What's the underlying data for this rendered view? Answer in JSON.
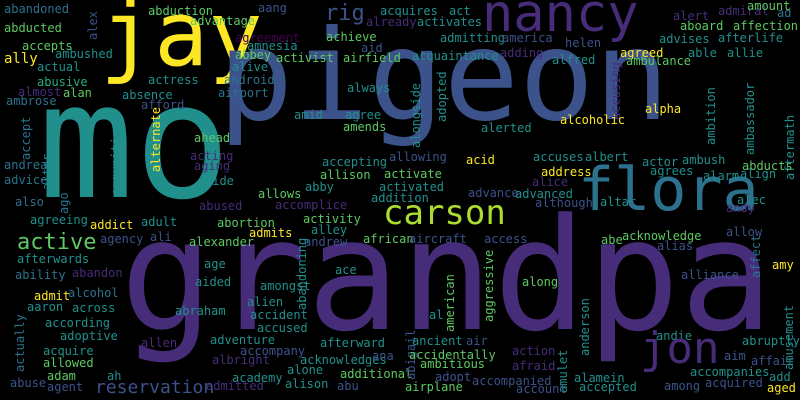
{
  "cloud": {
    "background": "#000000",
    "palette": {
      "purple": "#472c7a",
      "blue": "#3b528b",
      "teal": "#2c728e",
      "green": "#21908d",
      "mint": "#27ad81",
      "lime": "#5ec962",
      "yellow": "#fde725",
      "ygreen": "#addc30",
      "dark": "#440154"
    },
    "words": [
      {
        "id": "w001",
        "text": "abandoned",
        "color": "teal"
      },
      {
        "id": "w002",
        "text": "abducted",
        "color": "lime"
      },
      {
        "id": "w003",
        "text": "accepts",
        "color": "lime"
      },
      {
        "id": "w004",
        "text": "ally",
        "color": "yellow"
      },
      {
        "id": "w005",
        "text": "ambushed",
        "color": "green"
      },
      {
        "id": "w006",
        "text": "actual",
        "color": "green"
      },
      {
        "id": "w007",
        "text": "abusive",
        "color": "mint"
      },
      {
        "id": "w008",
        "text": "almost",
        "color": "purple"
      },
      {
        "id": "w009",
        "text": "alan",
        "color": "lime"
      },
      {
        "id": "w010",
        "text": "ambrose",
        "color": "teal"
      },
      {
        "id": "w011",
        "text": "accept",
        "color": "teal"
      },
      {
        "id": "w012",
        "text": "andrea",
        "color": "teal"
      },
      {
        "id": "w013",
        "text": "advice",
        "color": "teal"
      },
      {
        "id": "w014",
        "text": "alter",
        "color": "teal"
      },
      {
        "id": "w015",
        "text": "also",
        "color": "teal"
      },
      {
        "id": "w016",
        "text": "ago",
        "color": "teal"
      },
      {
        "id": "w017",
        "text": "agreeing",
        "color": "green"
      },
      {
        "id": "w018",
        "text": "active",
        "color": "lime"
      },
      {
        "id": "w019",
        "text": "afterwards",
        "color": "green"
      },
      {
        "id": "w020",
        "text": "ability",
        "color": "teal"
      },
      {
        "id": "w021",
        "text": "abandon",
        "color": "purple"
      },
      {
        "id": "w022",
        "text": "alcohol",
        "color": "teal"
      },
      {
        "id": "w023",
        "text": "admit",
        "color": "yellow"
      },
      {
        "id": "w024",
        "text": "aaron",
        "color": "green"
      },
      {
        "id": "w025",
        "text": "across",
        "color": "green"
      },
      {
        "id": "w026",
        "text": "according",
        "color": "green"
      },
      {
        "id": "w027",
        "text": "adoptive",
        "color": "green"
      },
      {
        "id": "w028",
        "text": "actually",
        "color": "teal"
      },
      {
        "id": "w029",
        "text": "acquire",
        "color": "green"
      },
      {
        "id": "w030",
        "text": "allowed",
        "color": "lime"
      },
      {
        "id": "w031",
        "text": "adam",
        "color": "lime"
      },
      {
        "id": "w032",
        "text": "ah",
        "color": "green"
      },
      {
        "id": "w033",
        "text": "abuse",
        "color": "blue"
      },
      {
        "id": "w034",
        "text": "agent",
        "color": "blue"
      },
      {
        "id": "w035",
        "text": "alex",
        "color": "blue"
      },
      {
        "id": "w036",
        "text": "jay",
        "color": "yellow"
      },
      {
        "id": "w037",
        "text": "mo",
        "color": "green"
      },
      {
        "id": "w038",
        "text": "pigeon",
        "color": "blue"
      },
      {
        "id": "w039",
        "text": "grandpa",
        "color": "purple"
      },
      {
        "id": "w040",
        "text": "abduction",
        "color": "lime"
      },
      {
        "id": "w041",
        "text": "advantage",
        "color": "lime"
      },
      {
        "id": "w042",
        "text": "agreement",
        "color": "dark"
      },
      {
        "id": "w043",
        "text": "amnesia",
        "color": "green"
      },
      {
        "id": "w044",
        "text": "abbey",
        "color": "lime"
      },
      {
        "id": "w045",
        "text": "alive",
        "color": "green"
      },
      {
        "id": "w046",
        "text": "actress",
        "color": "green"
      },
      {
        "id": "w047",
        "text": "absence",
        "color": "green"
      },
      {
        "id": "w048",
        "text": "afford",
        "color": "blue"
      },
      {
        "id": "w049",
        "text": "android",
        "color": "teal"
      },
      {
        "id": "w050",
        "text": "airport",
        "color": "teal"
      },
      {
        "id": "w051",
        "text": "ahead",
        "color": "lime"
      },
      {
        "id": "w052",
        "text": "acting",
        "color": "purple"
      },
      {
        "id": "w053",
        "text": "aging",
        "color": "purple"
      },
      {
        "id": "w054",
        "text": "aide",
        "color": "green"
      },
      {
        "id": "w055",
        "text": "alternate",
        "color": "yellow"
      },
      {
        "id": "w056",
        "text": "ammunition",
        "color": "green"
      },
      {
        "id": "w057",
        "text": "addict",
        "color": "yellow"
      },
      {
        "id": "w058",
        "text": "adult",
        "color": "green"
      },
      {
        "id": "w059",
        "text": "agency",
        "color": "blue"
      },
      {
        "id": "w060",
        "text": "ali",
        "color": "blue"
      },
      {
        "id": "w061",
        "text": "alexander",
        "color": "lime"
      },
      {
        "id": "w062",
        "text": "abortion",
        "color": "lime"
      },
      {
        "id": "w063",
        "text": "admits",
        "color": "yellow"
      },
      {
        "id": "w064",
        "text": "abused",
        "color": "purple"
      },
      {
        "id": "w065",
        "text": "allows",
        "color": "lime"
      },
      {
        "id": "w066",
        "text": "abby",
        "color": "green"
      },
      {
        "id": "w067",
        "text": "accomplice",
        "color": "purple"
      },
      {
        "id": "w068",
        "text": "aang",
        "color": "blue"
      },
      {
        "id": "w069",
        "text": "rig",
        "color": "blue"
      },
      {
        "id": "w070",
        "text": "achieve",
        "color": "lime"
      },
      {
        "id": "w071",
        "text": "activist",
        "color": "lime"
      },
      {
        "id": "w072",
        "text": "airfield",
        "color": "lime"
      },
      {
        "id": "w073",
        "text": "aid",
        "color": "blue"
      },
      {
        "id": "w074",
        "text": "always",
        "color": "green"
      },
      {
        "id": "w075",
        "text": "amid",
        "color": "green"
      },
      {
        "id": "w076",
        "text": "agree",
        "color": "green"
      },
      {
        "id": "w077",
        "text": "amends",
        "color": "lime"
      },
      {
        "id": "w078",
        "text": "accepting",
        "color": "green"
      },
      {
        "id": "w079",
        "text": "allison",
        "color": "lime"
      },
      {
        "id": "w080",
        "text": "allowing",
        "color": "blue"
      },
      {
        "id": "w081",
        "text": "activate",
        "color": "lime"
      },
      {
        "id": "w082",
        "text": "activated",
        "color": "green"
      },
      {
        "id": "w083",
        "text": "addition",
        "color": "green"
      },
      {
        "id": "w084",
        "text": "alongside",
        "color": "green"
      },
      {
        "id": "w085",
        "text": "carson",
        "color": "ygreen"
      },
      {
        "id": "w086",
        "text": "activity",
        "color": "lime"
      },
      {
        "id": "w087",
        "text": "alley",
        "color": "green"
      },
      {
        "id": "w088",
        "text": "andrew",
        "color": "blue"
      },
      {
        "id": "w089",
        "text": "african",
        "color": "lime"
      },
      {
        "id": "w090",
        "text": "aircraft",
        "color": "blue"
      },
      {
        "id": "w091",
        "text": "access",
        "color": "blue"
      },
      {
        "id": "w092",
        "text": "age",
        "color": "green"
      },
      {
        "id": "w093",
        "text": "abandoning",
        "color": "green"
      },
      {
        "id": "w094",
        "text": "ace",
        "color": "green"
      },
      {
        "id": "w095",
        "text": "aided",
        "color": "green"
      },
      {
        "id": "w096",
        "text": "amongst",
        "color": "green"
      },
      {
        "id": "w097",
        "text": "abraham",
        "color": "green"
      },
      {
        "id": "w098",
        "text": "alien",
        "color": "green"
      },
      {
        "id": "w099",
        "text": "accident",
        "color": "green"
      },
      {
        "id": "w100",
        "text": "accused",
        "color": "green"
      },
      {
        "id": "w101",
        "text": "afterward",
        "color": "green"
      },
      {
        "id": "w102",
        "text": "allen",
        "color": "purple"
      },
      {
        "id": "w103",
        "text": "adventure",
        "color": "green"
      },
      {
        "id": "w104",
        "text": "albright",
        "color": "purple"
      },
      {
        "id": "w105",
        "text": "accompany",
        "color": "blue"
      },
      {
        "id": "w106",
        "text": "acknowledges",
        "color": "green"
      },
      {
        "id": "w107",
        "text": "academy",
        "color": "green"
      },
      {
        "id": "w108",
        "text": "alone",
        "color": "green"
      },
      {
        "id": "w109",
        "text": "alison",
        "color": "green"
      },
      {
        "id": "w110",
        "text": "admitted",
        "color": "purple"
      },
      {
        "id": "w111",
        "text": "abu",
        "color": "blue"
      },
      {
        "id": "w112",
        "text": "additional",
        "color": "lime"
      },
      {
        "id": "w113",
        "text": "ana",
        "color": "blue"
      },
      {
        "id": "w114",
        "text": "acquires",
        "color": "green"
      },
      {
        "id": "w115",
        "text": "already",
        "color": "purple"
      },
      {
        "id": "w116",
        "text": "act",
        "color": "green"
      },
      {
        "id": "w117",
        "text": "activates",
        "color": "green"
      },
      {
        "id": "w118",
        "text": "nancy",
        "color": "purple"
      },
      {
        "id": "w119",
        "text": "admitting",
        "color": "green"
      },
      {
        "id": "w120",
        "text": "america",
        "color": "blue"
      },
      {
        "id": "w121",
        "text": "adding",
        "color": "purple"
      },
      {
        "id": "w122",
        "text": "acquaintance",
        "color": "green"
      },
      {
        "id": "w123",
        "text": "helen",
        "color": "blue"
      },
      {
        "id": "w124",
        "text": "alfred",
        "color": "green"
      },
      {
        "id": "w125",
        "text": "accusing",
        "color": "purple"
      },
      {
        "id": "w126",
        "text": "adopted",
        "color": "green"
      },
      {
        "id": "w127",
        "text": "alpha",
        "color": "yellow"
      },
      {
        "id": "w128",
        "text": "alcoholic",
        "color": "yellow"
      },
      {
        "id": "w129",
        "text": "alerted",
        "color": "green"
      },
      {
        "id": "w130",
        "text": "acid",
        "color": "yellow"
      },
      {
        "id": "w131",
        "text": "accuses",
        "color": "green"
      },
      {
        "id": "w132",
        "text": "albert",
        "color": "green"
      },
      {
        "id": "w133",
        "text": "address",
        "color": "yellow"
      },
      {
        "id": "w134",
        "text": "alice",
        "color": "purple"
      },
      {
        "id": "w135",
        "text": "advance",
        "color": "blue"
      },
      {
        "id": "w136",
        "text": "advanced",
        "color": "green"
      },
      {
        "id": "w137",
        "text": "although",
        "color": "blue"
      },
      {
        "id": "w138",
        "text": "altar",
        "color": "green"
      },
      {
        "id": "w139",
        "text": "flora",
        "color": "teal"
      },
      {
        "id": "w140",
        "text": "abe",
        "color": "lime"
      },
      {
        "id": "w141",
        "text": "along",
        "color": "lime"
      },
      {
        "id": "w142",
        "text": "aggressive",
        "color": "lime"
      },
      {
        "id": "w143",
        "text": "american",
        "color": "lime"
      },
      {
        "id": "w144",
        "text": "al",
        "color": "green"
      },
      {
        "id": "w145",
        "text": "alliance",
        "color": "blue"
      },
      {
        "id": "w146",
        "text": "anderson",
        "color": "green"
      },
      {
        "id": "w147",
        "text": "abigail",
        "color": "blue"
      },
      {
        "id": "w148",
        "text": "ancient",
        "color": "green"
      },
      {
        "id": "w149",
        "text": "air",
        "color": "blue"
      },
      {
        "id": "w150",
        "text": "accidentally",
        "color": "lime"
      },
      {
        "id": "w151",
        "text": "ambitious",
        "color": "lime"
      },
      {
        "id": "w152",
        "text": "adopt",
        "color": "blue"
      },
      {
        "id": "w153",
        "text": "action",
        "color": "purple"
      },
      {
        "id": "w154",
        "text": "afraid",
        "color": "purple"
      },
      {
        "id": "w155",
        "text": "amulet",
        "color": "green"
      },
      {
        "id": "w156",
        "text": "accompanied",
        "color": "blue"
      },
      {
        "id": "w157",
        "text": "account",
        "color": "blue"
      },
      {
        "id": "w158",
        "text": "airplane",
        "color": "lime"
      },
      {
        "id": "w159",
        "text": "alamein",
        "color": "green"
      },
      {
        "id": "w160",
        "text": "accepted",
        "color": "green"
      },
      {
        "id": "w161",
        "text": "among",
        "color": "blue"
      },
      {
        "id": "w162",
        "text": "acquired",
        "color": "blue"
      },
      {
        "id": "w163",
        "text": "aged",
        "color": "yellow"
      },
      {
        "id": "w164",
        "text": "add",
        "color": "green"
      },
      {
        "id": "w165",
        "text": "accompanies",
        "color": "green"
      },
      {
        "id": "w166",
        "text": "affair",
        "color": "blue"
      },
      {
        "id": "w167",
        "text": "aim",
        "color": "blue"
      },
      {
        "id": "w168",
        "text": "andie",
        "color": "green"
      },
      {
        "id": "w169",
        "text": "jon",
        "color": "purple"
      },
      {
        "id": "w170",
        "text": "acknowledge",
        "color": "lime"
      },
      {
        "id": "w171",
        "text": "alias",
        "color": "blue"
      },
      {
        "id": "w172",
        "text": "allow",
        "color": "blue"
      },
      {
        "id": "w173",
        "text": "alec",
        "color": "green"
      },
      {
        "id": "w174",
        "text": "andy",
        "color": "purple"
      },
      {
        "id": "w175",
        "text": "affect",
        "color": "teal"
      },
      {
        "id": "w176",
        "text": "amy",
        "color": "yellow"
      },
      {
        "id": "w177",
        "text": "abruptly",
        "color": "green"
      },
      {
        "id": "w178",
        "text": "amusement",
        "color": "green"
      },
      {
        "id": "w179",
        "text": "reservation",
        "color": "blue"
      },
      {
        "id": "w180",
        "text": "alert",
        "color": "purple"
      },
      {
        "id": "w181",
        "text": "admiral",
        "color": "purple"
      },
      {
        "id": "w182",
        "text": "amount",
        "color": "lime"
      },
      {
        "id": "w183",
        "text": "ad",
        "color": "teal"
      },
      {
        "id": "w184",
        "text": "aboard",
        "color": "lime"
      },
      {
        "id": "w185",
        "text": "affection",
        "color": "lime"
      },
      {
        "id": "w186",
        "text": "advises",
        "color": "green"
      },
      {
        "id": "w187",
        "text": "afterlife",
        "color": "green"
      },
      {
        "id": "w188",
        "text": "agreed",
        "color": "yellow"
      },
      {
        "id": "w189",
        "text": "able",
        "color": "green"
      },
      {
        "id": "w190",
        "text": "allie",
        "color": "green"
      },
      {
        "id": "w191",
        "text": "ambulance",
        "color": "lime"
      },
      {
        "id": "w192",
        "text": "ambassador",
        "color": "green"
      },
      {
        "id": "w193",
        "text": "ambition",
        "color": "green"
      },
      {
        "id": "w194",
        "text": "aftermath",
        "color": "green"
      },
      {
        "id": "w195",
        "text": "actor",
        "color": "green"
      },
      {
        "id": "w196",
        "text": "ambush",
        "color": "green"
      },
      {
        "id": "w197",
        "text": "abducts",
        "color": "lime"
      },
      {
        "id": "w198",
        "text": "agrees",
        "color": "green"
      },
      {
        "id": "w199",
        "text": "alarm",
        "color": "green"
      },
      {
        "id": "w200",
        "text": "align",
        "color": "green"
      }
    ]
  }
}
